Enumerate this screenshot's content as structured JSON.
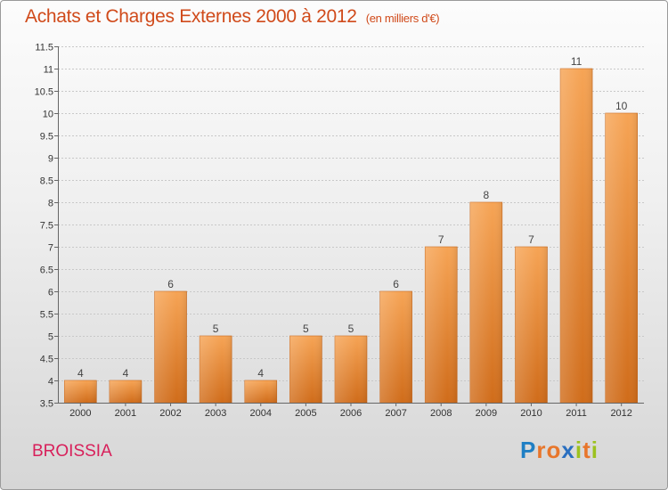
{
  "title": "Achats et Charges Externes 2000 à 2012",
  "unit": "(en milliers d'€)",
  "commune": "BROISSIA",
  "logo": {
    "text": "Proxiti",
    "letters": [
      {
        "ch": "P",
        "color": "#1f7fc4"
      },
      {
        "ch": "r",
        "color": "#e8762b"
      },
      {
        "ch": "o",
        "color": "#e8762b"
      },
      {
        "ch": "x",
        "color": "#2a6fc0"
      },
      {
        "ch": "i",
        "color": "#9cc21f"
      },
      {
        "ch": "t",
        "color": "#e8762b"
      },
      {
        "ch": "i",
        "color": "#9cc21f"
      }
    ]
  },
  "colors": {
    "bar_top": "#f6a455",
    "bar_bottom": "#d06c1a",
    "title": "#d04a1a",
    "commune": "#d81f5a"
  },
  "chart_data": {
    "type": "bar",
    "title": "Achats et Charges Externes 2000 à 2012",
    "categories": [
      "2000",
      "2001",
      "2002",
      "2003",
      "2004",
      "2005",
      "2006",
      "2007",
      "2008",
      "2009",
      "2010",
      "2011",
      "2012"
    ],
    "values": [
      4,
      4,
      6,
      5,
      4,
      5,
      5,
      6,
      7,
      8,
      7,
      11,
      10
    ],
    "value_labels": [
      "4",
      "4",
      "6",
      "5",
      "4",
      "5",
      "5",
      "6",
      "7",
      "8",
      "7",
      "11",
      "10"
    ],
    "ylim": [
      3.5,
      11.5
    ],
    "yticks": [
      3.5,
      4,
      4.5,
      5,
      5.5,
      6,
      6.5,
      7,
      7.5,
      8,
      8.5,
      9,
      9.5,
      10,
      10.5,
      11,
      11.5
    ],
    "ytick_labels": [
      "3.5",
      "4",
      "4.5",
      "5",
      "5.5",
      "6",
      "6.5",
      "7",
      "7.5",
      "8",
      "8.5",
      "9",
      "9.5",
      "10",
      "10.5",
      "11",
      "11.5"
    ],
    "grid": true,
    "legend": "none"
  }
}
